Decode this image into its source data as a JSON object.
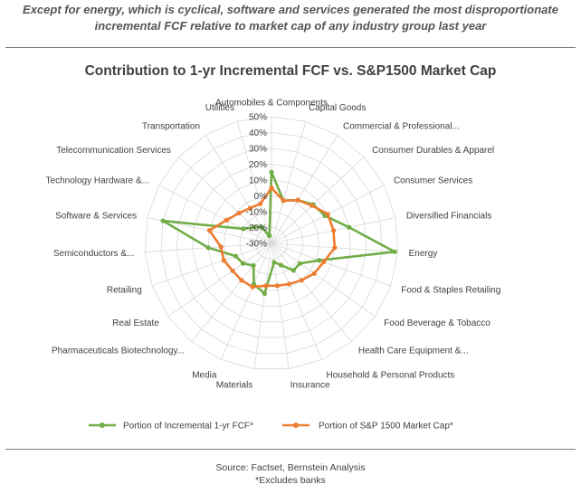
{
  "header": {
    "subtitle_line1": "Except for energy, which is cyclical, software and services generated the most disproportionate",
    "subtitle_line2": "incremental FCF relative to market cap of any industry group last year"
  },
  "footer": {
    "source": "Source: Factset, Bernstein Analysis",
    "note": "*Excludes banks"
  },
  "chart_data": {
    "type": "radar",
    "title": "Contribution to 1-yr Incremental FCF vs. S&P1500 Market Cap",
    "categories": [
      "Automobiles & Components",
      "Capital Goods",
      "Commercial & Professional...",
      "Consumer Durables & Apparel",
      "Consumer Services",
      "Diversified Financials",
      "Energy",
      "Food & Staples Retailing",
      "Food Beverage & Tobacco",
      "Health Care Equipment &...",
      "Household & Personal Products",
      "Insurance",
      "Materials",
      "Media",
      "Pharmaceuticals Biotechnology...",
      "Real Estate",
      "Retailing",
      "Semiconductors &...",
      "Software & Services",
      "Technology Hardware &...",
      "Telecommunication Services",
      "Transportation",
      "Utilities"
    ],
    "radial_ticks": [
      "-30%",
      "-20%",
      "-10%",
      "0%",
      "10%",
      "20%",
      "30%",
      "40%",
      "50%"
    ],
    "range": [
      -30,
      50
    ],
    "series": [
      {
        "name": "Portion of Incremental 1-yr FCF*",
        "color": "#70ad47",
        "values": [
          15,
          -2,
          2,
          6,
          8,
          20,
          48,
          2,
          -8,
          -8,
          -15,
          -18,
          2,
          -2,
          -12,
          -8,
          -6,
          10,
          40,
          -10,
          -15,
          -18,
          -25
        ]
      },
      {
        "name": "Portion of S&P 1500 Market Cap*",
        "color": "#ed7d31",
        "values": [
          5,
          -2,
          2,
          5,
          10,
          10,
          10,
          5,
          3,
          0,
          -2,
          -3,
          -3,
          0,
          0,
          0,
          2,
          2,
          10,
          2,
          -2,
          -4,
          -4
        ]
      }
    ]
  }
}
